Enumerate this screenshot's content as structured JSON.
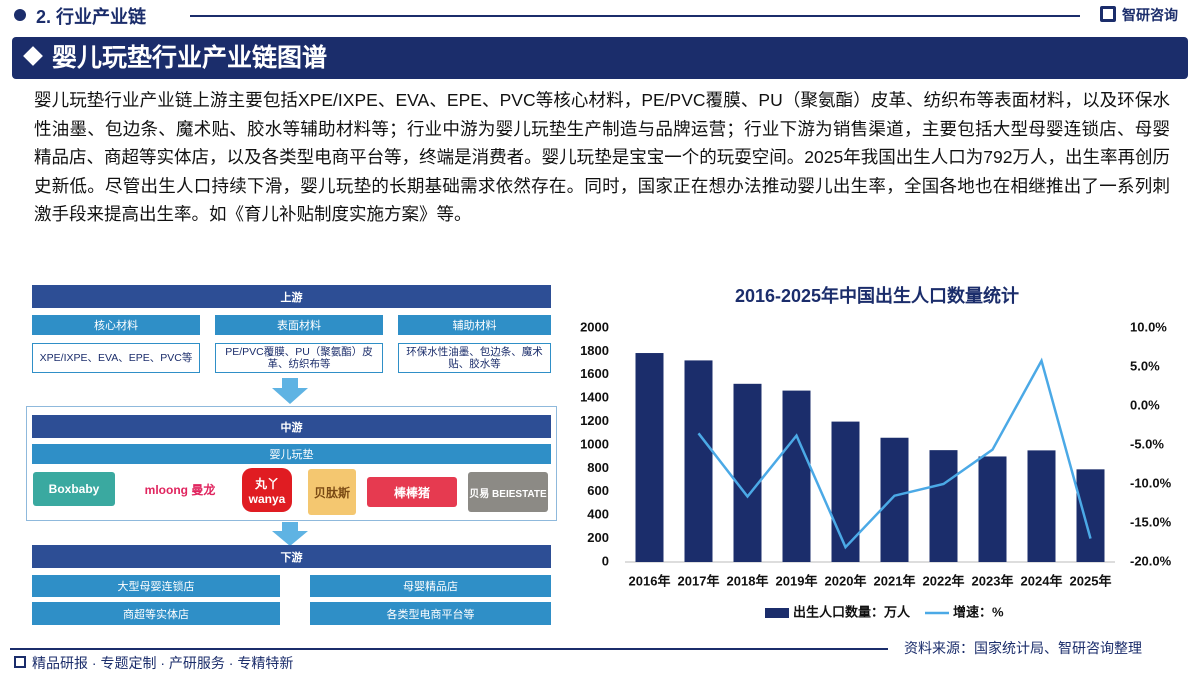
{
  "header": {
    "section": "2. 行业产业链",
    "logo": "智研咨询",
    "title": "婴儿玩垫行业产业链图谱"
  },
  "intro": "婴儿玩垫行业产业链上游主要包括XPE/IXPE、EVA、EPE、PVC等核心材料，PE/PVC覆膜、PU（聚氨酯）皮革、纺织布等表面材料，以及环保水性油墨、包边条、魔术贴、胶水等辅助材料等；行业中游为婴儿玩垫生产制造与品牌运营；行业下游为销售渠道，主要包括大型母婴连锁店、母婴精品店、商超等实体店，以及各类型电商平台等，终端是消费者。婴儿玩垫是宝宝一个的玩耍空间。2025年我国出生人口为792万人，出生率再创历史新低。尽管出生人口持续下滑，婴儿玩垫的长期基础需求依然存在。同时，国家正在想办法推动婴儿出生率，全国各地也在相继推出了一系列刺激手段来提高出生率。如《育儿补贴制度实施方案》等。",
  "diagram": {
    "upstream": {
      "title": "上游",
      "groups": [
        {
          "name": "核心材料",
          "items": "XPE/IXPE、EVA、EPE、PVC等"
        },
        {
          "name": "表面材料",
          "items": "PE/PVC覆膜、PU（聚氨酯）皮革、纺织布等"
        },
        {
          "name": "辅助材料",
          "items": "环保水性油墨、包边条、魔术贴、胶水等"
        }
      ]
    },
    "midstream": {
      "title": "中游",
      "product": "婴儿玩垫",
      "brands": [
        "Boxbaby",
        "mloong 曼龙",
        "丸丫 wanya",
        "贝肽斯",
        "棒棒猪",
        "贝易 BEIESTATE"
      ]
    },
    "downstream": {
      "title": "下游",
      "channels": [
        "大型母婴连锁店",
        "母婴精品店",
        "商超等实体店",
        "各类型电商平台等"
      ]
    }
  },
  "chart_data": {
    "type": "bar-line",
    "title": "2016-2025年中国出生人口数量统计",
    "categories": [
      "2016年",
      "2017年",
      "2018年",
      "2019年",
      "2020年",
      "2021年",
      "2022年",
      "2023年",
      "2024年",
      "2025年"
    ],
    "series": [
      {
        "name": "出生人口数量：万人",
        "type": "bar",
        "color": "#1b2d6b",
        "values": [
          1786,
          1723,
          1523,
          1465,
          1200,
          1062,
          956,
          902,
          954,
          792
        ]
      },
      {
        "name": "增速：%",
        "type": "line",
        "axis": "y2",
        "color": "#4ba9e6",
        "values": [
          null,
          -3.5,
          -11.6,
          -3.8,
          -18.1,
          -11.5,
          -10.0,
          -5.6,
          5.8,
          -17.0
        ]
      }
    ],
    "ylim": [
      0,
      2000
    ],
    "yticks": [
      0,
      200,
      400,
      600,
      800,
      1000,
      1200,
      1400,
      1600,
      1800,
      2000
    ],
    "y2lim": [
      -20,
      10
    ],
    "y2ticks": [
      {
        "value": -20,
        "label": "-20.0%"
      },
      {
        "value": -15,
        "label": "-15.0%"
      },
      {
        "value": -10,
        "label": "-10.0%"
      },
      {
        "value": -5,
        "label": "-5.0%"
      },
      {
        "value": 0,
        "label": "0.0%"
      },
      {
        "value": 5,
        "label": "5.0%"
      },
      {
        "value": 10,
        "label": "10.0%"
      }
    ],
    "legend": "bottom"
  },
  "footer": {
    "source": "资料来源：国家统计局、智研咨询整理",
    "slogan": "精品研报 · 专题定制 · 产研服务 · 专精特新"
  }
}
